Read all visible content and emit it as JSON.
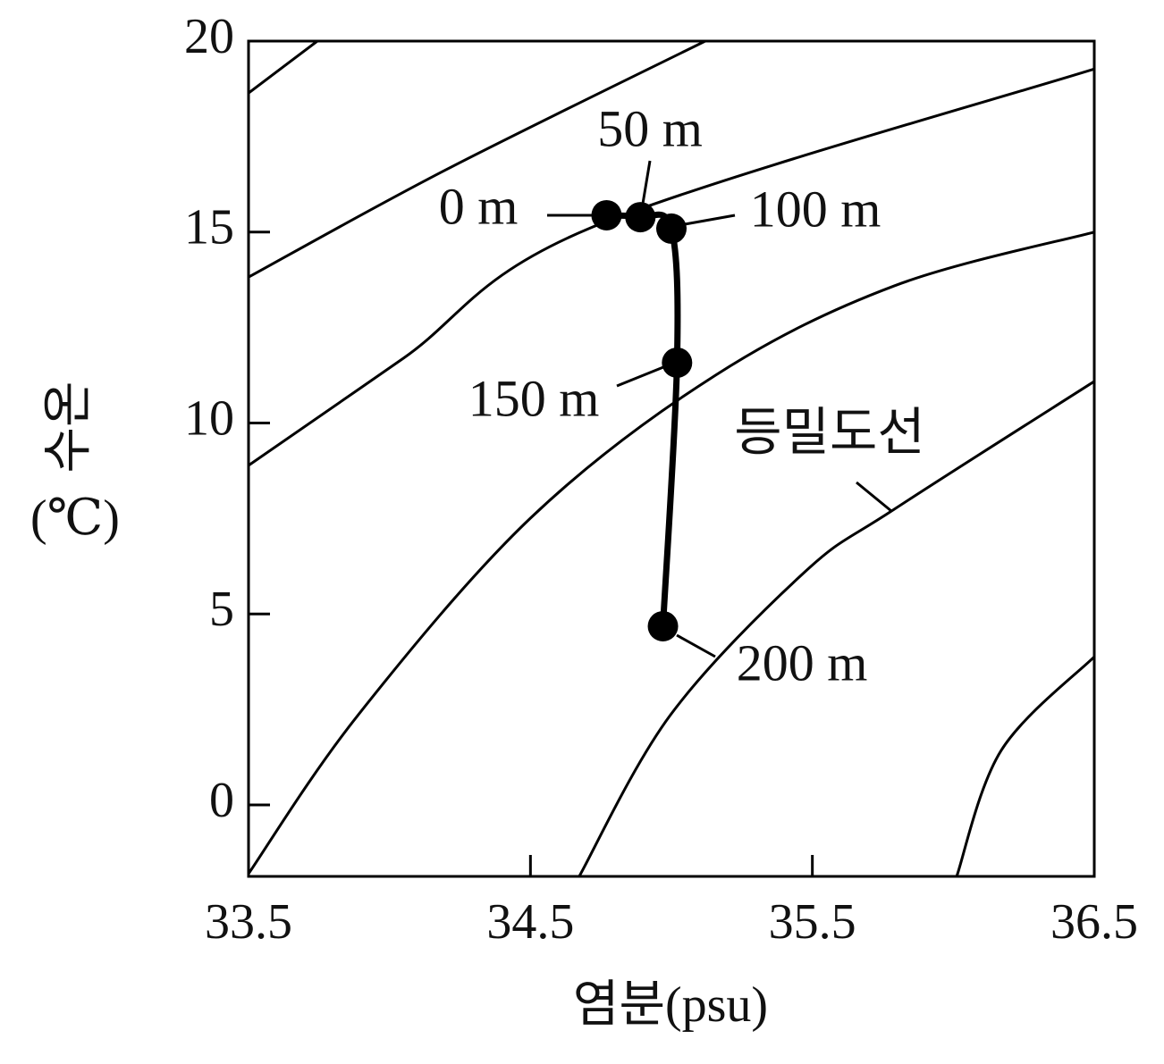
{
  "chart_data": {
    "type": "ts-diagram",
    "x_label": "염분(psu)",
    "y_label": "수온",
    "y_unit": "(℃)",
    "xlim": [
      33.5,
      36.5
    ],
    "ylim": [
      -1.87,
      20
    ],
    "xticks": [
      33.5,
      34.5,
      35.5,
      36.5
    ],
    "yticks": [
      0,
      5,
      10,
      15,
      20
    ],
    "x": [
      34.77,
      34.89,
      35.0,
      35.02,
      34.97
    ],
    "values": [
      15.44,
      15.39,
      15.09,
      11.58,
      4.68
    ],
    "point_labels": [
      "0 m",
      "50 m",
      "100 m",
      "150 m",
      "200 m"
    ],
    "color": "#000000",
    "contour_label": "등밀도선",
    "contours": [
      {
        "x": [
          33.5,
          33.744
        ],
        "values": [
          18.64,
          20
        ]
      },
      {
        "x": [
          33.5,
          34.2,
          35.12
        ],
        "values": [
          13.82,
          16.63,
          20
        ]
      },
      {
        "x": [
          33.5,
          34.05,
          34.71,
          36.5
        ],
        "values": [
          8.89,
          11.7,
          15.1,
          19.27
        ]
      },
      {
        "x": [
          33.5,
          33.887,
          34.5,
          35.156,
          35.79,
          36.5
        ],
        "values": [
          -1.8,
          2.34,
          7.51,
          11.25,
          13.59,
          15.0
        ]
      },
      {
        "x": [
          34.673,
          34.997,
          35.473,
          35.79,
          36.5
        ],
        "values": [
          -1.87,
          2.36,
          6.1,
          7.74,
          11.09
        ]
      },
      {
        "x": [
          36.012,
          36.17,
          36.5
        ],
        "values": [
          -1.87,
          1.43,
          3.88
        ]
      }
    ]
  }
}
